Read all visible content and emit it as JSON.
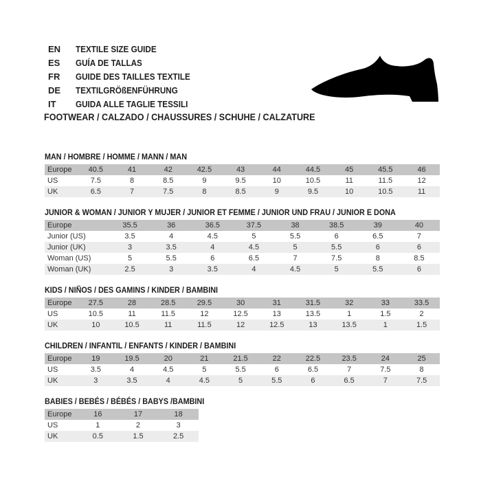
{
  "header": {
    "languages": [
      {
        "code": "EN",
        "label": "TEXTILE SIZE GUIDE"
      },
      {
        "code": "ES",
        "label": "GUÍA DE TALLAS"
      },
      {
        "code": "FR",
        "label": "GUIDE DES TAILLES TEXTILE"
      },
      {
        "code": "DE",
        "label": "TEXTILGRÖßENFÜHRUNG"
      },
      {
        "code": "IT",
        "label": "GUIDA ALLE TAGLIE TESSILI"
      }
    ],
    "category_line": "FOOTWEAR / CALZADO / CHAUSSURES / SCHUHE / CALZATURE",
    "shoe_icon": "dress-shoe-silhouette"
  },
  "colors": {
    "header_row_bg": "#c5c5c5",
    "alt_row_bg": "#ececec",
    "text": "#1f1f1f",
    "shoe": "#000000"
  },
  "tables": [
    {
      "id": "man",
      "title": "MAN / HOMBRE / HOMME / MANN / MAN",
      "rows": [
        {
          "label": "Europe",
          "header": true,
          "values": [
            "40.5",
            "41",
            "42",
            "42.5",
            "43",
            "44",
            "44.5",
            "45",
            "45.5",
            "46"
          ]
        },
        {
          "label": "US",
          "values": [
            "7.5",
            "8",
            "8.5",
            "9",
            "9.5",
            "10",
            "10.5",
            "11",
            "11.5",
            "12"
          ]
        },
        {
          "label": "UK",
          "values": [
            "6.5",
            "7",
            "7.5",
            "8",
            "8.5",
            "9",
            "9.5",
            "10",
            "10.5",
            "11"
          ]
        }
      ]
    },
    {
      "id": "junior-woman",
      "title": "JUNIOR & WOMAN / JUNIOR Y MUJER / JUNIOR ET FEMME / JUNIOR UND FRAU / JUNIOR E DONA",
      "rows": [
        {
          "label": "Europe",
          "header": true,
          "values": [
            "35.5",
            "36",
            "36.5",
            "37.5",
            "38",
            "38.5",
            "39",
            "40"
          ]
        },
        {
          "label": "Junior (US)",
          "values": [
            "3.5",
            "4",
            "4.5",
            "5",
            "5.5",
            "6",
            "6.5",
            "7"
          ]
        },
        {
          "label": "Junior (UK)",
          "values": [
            "3",
            "3.5",
            "4",
            "4.5",
            "5",
            "5.5",
            "6",
            "6"
          ]
        },
        {
          "label": "Woman (US)",
          "values": [
            "5",
            "5.5",
            "6",
            "6.5",
            "7",
            "7.5",
            "8",
            "8.5"
          ]
        },
        {
          "label": "Woman (UK)",
          "values": [
            "2.5",
            "3",
            "3.5",
            "4",
            "4.5",
            "5",
            "5.5",
            "6"
          ]
        }
      ]
    },
    {
      "id": "kids",
      "title": "KIDS / NIÑOS / DES GAMINS / KINDER / BAMBINI",
      "rows": [
        {
          "label": "Europe",
          "header": true,
          "values": [
            "27.5",
            "28",
            "28.5",
            "29.5",
            "30",
            "31",
            "31.5",
            "32",
            "33",
            "33.5"
          ]
        },
        {
          "label": "US",
          "values": [
            "10.5",
            "11",
            "11.5",
            "12",
            "12.5",
            "13",
            "13.5",
            "1",
            "1.5",
            "2"
          ]
        },
        {
          "label": "UK",
          "values": [
            "10",
            "10.5",
            "11",
            "11.5",
            "12",
            "12.5",
            "13",
            "13.5",
            "1",
            "1.5"
          ]
        }
      ]
    },
    {
      "id": "children",
      "title": "CHILDREN / INFANTIL / ENFANTS / KINDER / BAMBINI",
      "rows": [
        {
          "label": "Europe",
          "header": true,
          "values": [
            "19",
            "19.5",
            "20",
            "21",
            "21.5",
            "22",
            "22.5",
            "23.5",
            "24",
            "25"
          ]
        },
        {
          "label": "US",
          "values": [
            "3.5",
            "4",
            "4.5",
            "5",
            "5.5",
            "6",
            "6.5",
            "7",
            "7.5",
            "8"
          ]
        },
        {
          "label": "UK",
          "values": [
            "3",
            "3.5",
            "4",
            "4.5",
            "5",
            "5.5",
            "6",
            "6.5",
            "7",
            "7.5"
          ]
        }
      ]
    },
    {
      "id": "babies",
      "title": "BABIES  / BEBÉS / BÉBÉS / BABYS /BAMBINI",
      "rows": [
        {
          "label": "Europe",
          "header": true,
          "values": [
            "16",
            "17",
            "18"
          ]
        },
        {
          "label": "US",
          "values": [
            "1",
            "2",
            "3"
          ]
        },
        {
          "label": "UK",
          "values": [
            "0.5",
            "1.5",
            "2.5"
          ]
        }
      ]
    }
  ]
}
